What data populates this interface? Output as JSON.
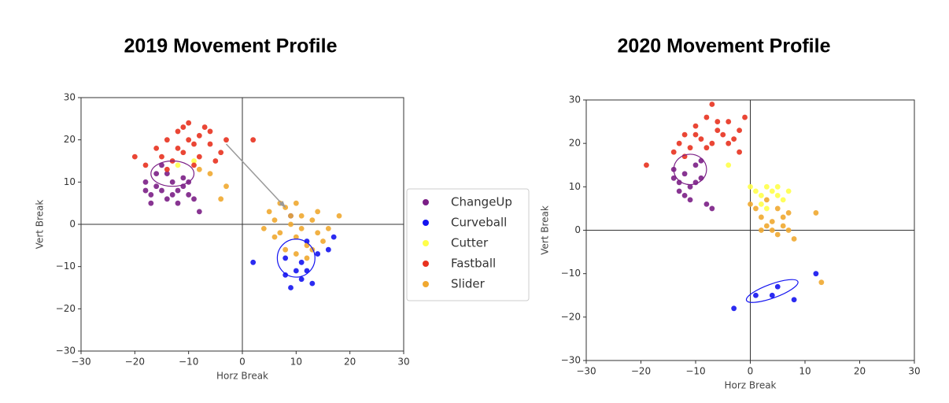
{
  "chart_data": [
    {
      "type": "scatter",
      "title": "2019 Movement Profile",
      "x_label": "Horz Break",
      "y_label": "Vert Break",
      "xlim": [
        -30,
        30
      ],
      "ylim": [
        -30,
        30
      ],
      "xticks": [
        {
          "value": -30,
          "label": "−30"
        },
        {
          "value": -20,
          "label": "−20"
        },
        {
          "value": -10,
          "label": "−10"
        },
        0,
        10,
        20,
        30
      ],
      "yticks": [
        {
          "value": -30,
          "label": "−30"
        },
        {
          "value": -20,
          "label": "−20"
        },
        {
          "value": -10,
          "label": "−10"
        },
        0,
        10,
        20,
        30
      ],
      "legend": "right",
      "arrow": {
        "x": [
          -3,
          8
        ],
        "y": [
          19,
          4
        ],
        "color": "#999999"
      },
      "series": [
        {
          "name": "ChangeUp",
          "color": "#7b1f86",
          "x": [
            -18,
            -17,
            -16,
            -15,
            -14,
            -13,
            -12,
            -11,
            -10,
            -14,
            -16,
            -12,
            -9,
            -8,
            -17,
            -15,
            -13,
            -11,
            -18,
            -10
          ],
          "values": [
            10,
            7,
            12,
            8,
            6,
            10,
            8,
            11,
            7,
            12,
            9,
            5,
            6,
            3,
            5,
            14,
            7,
            9,
            8,
            10
          ],
          "ellipse": {
            "cx": -13,
            "cy": 12,
            "rx": 4,
            "ry": 3,
            "angle": 0
          }
        },
        {
          "name": "Curveball",
          "color": "#1414f0",
          "x": [
            2,
            8,
            8,
            9,
            10,
            11,
            12,
            13,
            14,
            16,
            17,
            12,
            9,
            11
          ],
          "values": [
            -9,
            -8,
            -12,
            -15,
            -11,
            -9,
            -11,
            -14,
            -7,
            -6,
            -3,
            -4,
            2,
            -13
          ],
          "ellipse": {
            "cx": 10,
            "cy": -8,
            "rx": 3.5,
            "ry": 4.5,
            "angle": 0
          }
        },
        {
          "name": "Cutter",
          "color": "#ffff4a",
          "x": [
            -12,
            -9
          ],
          "values": [
            14,
            15
          ]
        },
        {
          "name": "Fastball",
          "color": "#e8321f",
          "x": [
            -20,
            -18,
            -16,
            -14,
            -12,
            -10,
            -8,
            -6,
            -4,
            -11,
            -13,
            -9,
            -7,
            -5,
            -15,
            -10,
            -12,
            -8,
            -6,
            -3,
            2,
            -14,
            -9,
            -11
          ],
          "values": [
            16,
            14,
            18,
            20,
            22,
            24,
            21,
            19,
            17,
            17,
            15,
            19,
            23,
            15,
            16,
            20,
            18,
            16,
            22,
            20,
            20,
            13,
            14,
            23
          ]
        },
        {
          "name": "Slider",
          "color": "#f0a830",
          "x": [
            5,
            6,
            7,
            8,
            9,
            10,
            11,
            12,
            13,
            14,
            15,
            8,
            10,
            12,
            7,
            9,
            16,
            18,
            4,
            6,
            11,
            13,
            -4,
            -3,
            -8,
            -6,
            10,
            14
          ],
          "values": [
            3,
            1,
            -2,
            4,
            0,
            -3,
            2,
            -5,
            1,
            -2,
            -4,
            -6,
            -7,
            -8,
            5,
            2,
            -1,
            2,
            -1,
            -3,
            -1,
            -6,
            6,
            9,
            13,
            12,
            5,
            3
          ]
        }
      ]
    },
    {
      "type": "scatter",
      "title": "2020 Movement Profile",
      "x_label": "Horz Break",
      "y_label": "Vert Break",
      "xlim": [
        -30,
        30
      ],
      "ylim": [
        -30,
        30
      ],
      "xticks": [
        {
          "value": -30,
          "label": "−30"
        },
        {
          "value": -20,
          "label": "−20"
        },
        {
          "value": -10,
          "label": "−10"
        },
        0,
        10,
        20,
        30
      ],
      "yticks": [
        {
          "value": -30,
          "label": "−30"
        },
        {
          "value": -20,
          "label": "−20"
        },
        {
          "value": -10,
          "label": "−10"
        },
        0,
        10,
        20,
        30
      ],
      "series": [
        {
          "color": "#7b1f86",
          "x": [
            -14,
            -13,
            -12,
            -11,
            -10,
            -9,
            -12,
            -11,
            -8,
            -7,
            -14,
            -9,
            -13,
            -10
          ],
          "values": [
            12,
            11,
            13,
            10,
            15,
            12,
            8,
            7,
            6,
            5,
            14,
            16,
            9,
            11
          ],
          "ellipse": {
            "cx": -11,
            "cy": 14,
            "rx": 3,
            "ry": 3.5,
            "angle": 0
          }
        },
        {
          "color": "#1414f0",
          "x": [
            -3,
            1,
            4,
            5,
            8,
            12
          ],
          "values": [
            -18,
            -15,
            -15,
            -13,
            -16,
            -10
          ],
          "ellipse": {
            "cx": 4,
            "cy": -14,
            "rx": 5,
            "ry": 1.6,
            "angle": -20
          }
        },
        {
          "color": "#ffff4a",
          "x": [
            -4,
            0,
            1,
            2,
            3,
            4,
            5,
            6,
            7,
            2,
            5,
            3
          ],
          "values": [
            15,
            10,
            9,
            8,
            10,
            9,
            8,
            7,
            9,
            6,
            10,
            5
          ]
        },
        {
          "color": "#e8321f",
          "x": [
            -19,
            -14,
            -13,
            -12,
            -10,
            -8,
            -7,
            -6,
            -4,
            -3,
            -2,
            -1,
            -11,
            -9,
            -7,
            -5,
            -12,
            -8,
            -6,
            -10,
            -4,
            -2
          ],
          "values": [
            15,
            18,
            20,
            22,
            24,
            26,
            29,
            23,
            25,
            21,
            18,
            26,
            19,
            21,
            20,
            22,
            17,
            19,
            25,
            22,
            20,
            23
          ]
        },
        {
          "color": "#f0a830",
          "x": [
            1,
            2,
            3,
            4,
            5,
            6,
            7,
            8,
            2,
            4,
            6,
            0,
            12,
            13,
            3,
            5,
            7
          ],
          "values": [
            5,
            3,
            7,
            2,
            5,
            1,
            4,
            -2,
            0,
            0,
            3,
            6,
            4,
            -12,
            1,
            -1,
            0
          ]
        }
      ]
    }
  ]
}
